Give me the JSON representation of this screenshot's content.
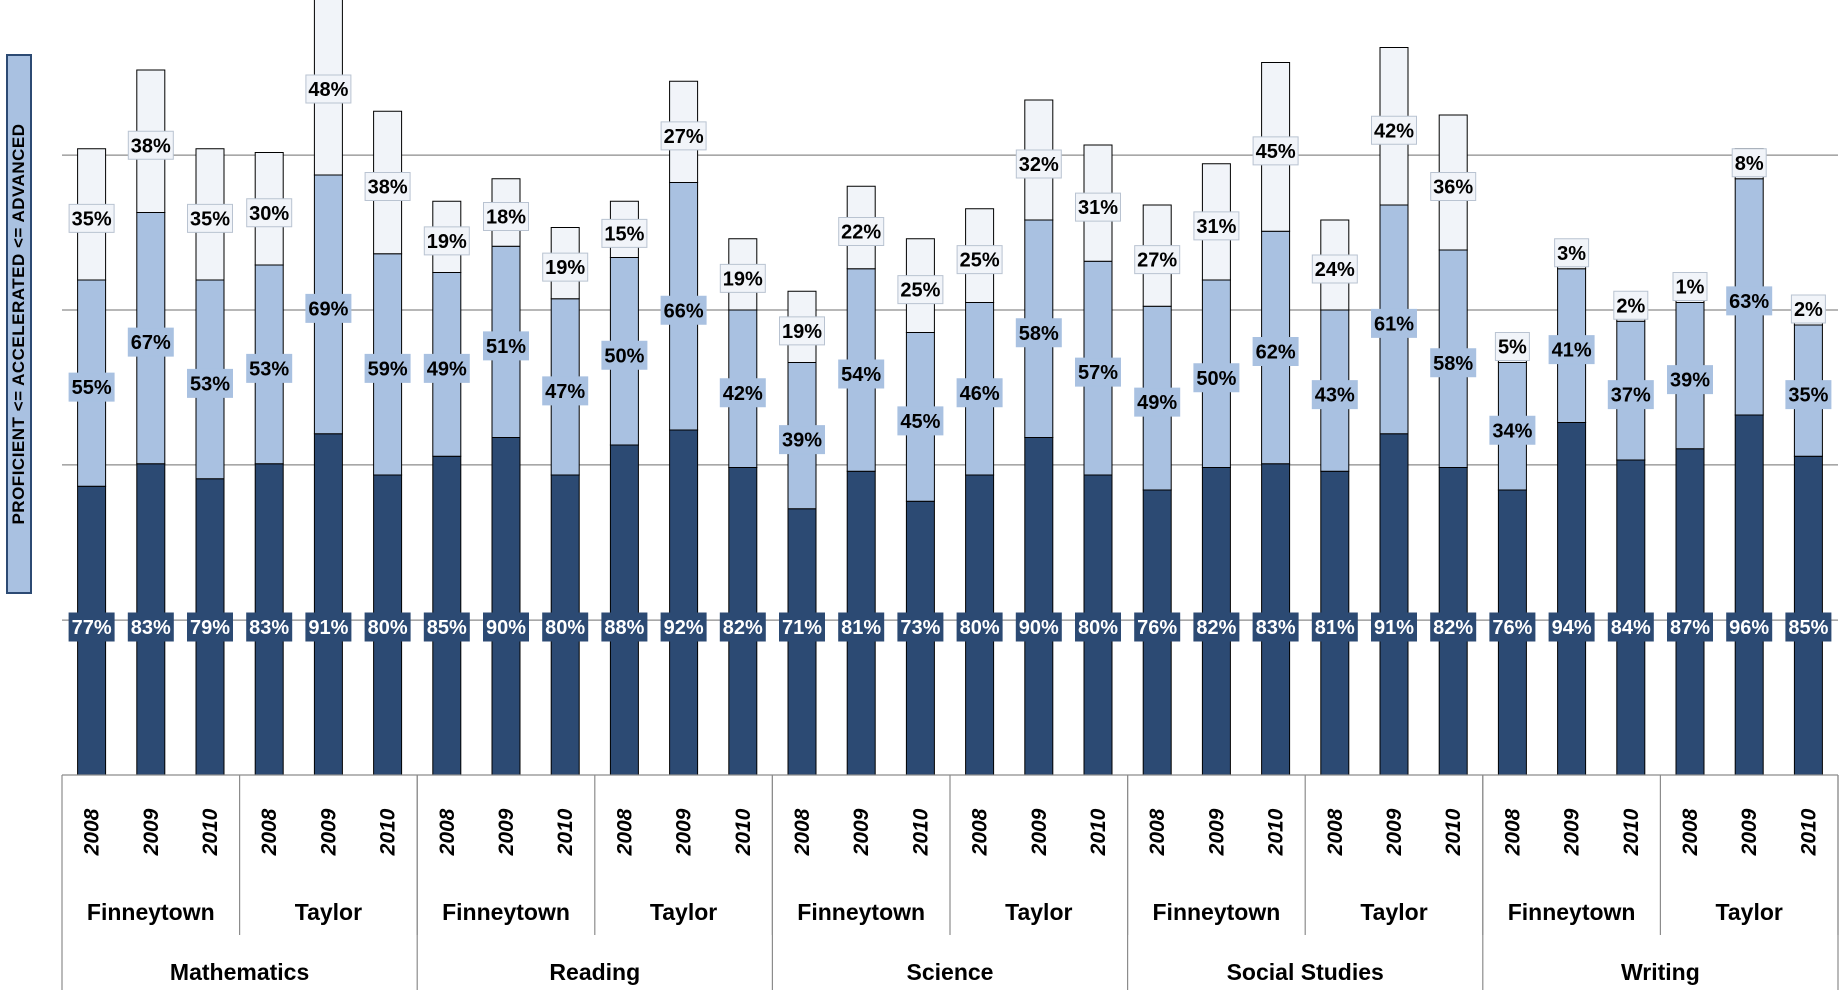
{
  "chart_data": {
    "type": "bar",
    "stacked": true,
    "ylabel": "PROFICIENT <= ACCELERATED <= ADVANCED",
    "ylim": [
      0,
      100
    ],
    "grid": true,
    "colors": {
      "proficient": "#2c4a73",
      "accelerated": "#a9c1e1",
      "advanced": "#f1f4f9",
      "outline": "#000000"
    },
    "years": [
      "2008",
      "2009",
      "2010"
    ],
    "groups": [
      {
        "subject": "Mathematics",
        "schools": [
          {
            "name": "Finneytown",
            "proficient": [
              77,
              83,
              79
            ],
            "accelerated": [
              55,
              67,
              53
            ],
            "advanced": [
              35,
              38,
              35
            ]
          },
          {
            "name": "Taylor",
            "proficient": [
              83,
              91,
              80
            ],
            "accelerated": [
              53,
              69,
              59
            ],
            "advanced": [
              30,
              48,
              38
            ]
          }
        ]
      },
      {
        "subject": "Reading",
        "schools": [
          {
            "name": "Finneytown",
            "proficient": [
              85,
              90,
              80
            ],
            "accelerated": [
              49,
              51,
              47
            ],
            "advanced": [
              19,
              18,
              19
            ]
          },
          {
            "name": "Taylor",
            "proficient": [
              88,
              92,
              82
            ],
            "accelerated": [
              50,
              66,
              42
            ],
            "advanced": [
              15,
              27,
              19
            ]
          }
        ]
      },
      {
        "subject": "Science",
        "schools": [
          {
            "name": "Finneytown",
            "proficient": [
              71,
              81,
              73
            ],
            "accelerated": [
              39,
              54,
              45
            ],
            "advanced": [
              19,
              22,
              25
            ]
          },
          {
            "name": "Taylor",
            "proficient": [
              80,
              90,
              80
            ],
            "accelerated": [
              46,
              58,
              57
            ],
            "advanced": [
              25,
              32,
              31
            ]
          }
        ]
      },
      {
        "subject": "Social Studies",
        "schools": [
          {
            "name": "Finneytown",
            "proficient": [
              76,
              82,
              83
            ],
            "accelerated": [
              49,
              50,
              62
            ],
            "advanced": [
              27,
              31,
              45
            ]
          },
          {
            "name": "Taylor",
            "proficient": [
              81,
              91,
              82
            ],
            "accelerated": [
              43,
              61,
              58
            ],
            "advanced": [
              24,
              42,
              36
            ]
          }
        ]
      },
      {
        "subject": "Writing",
        "schools": [
          {
            "name": "Finneytown",
            "proficient": [
              76,
              94,
              84
            ],
            "accelerated": [
              34,
              41,
              37
            ],
            "advanced": [
              5,
              3,
              2
            ]
          },
          {
            "name": "Taylor",
            "proficient": [
              87,
              96,
              85
            ],
            "accelerated": [
              39,
              63,
              35
            ],
            "advanced": [
              1,
              8,
              2
            ]
          }
        ]
      }
    ]
  }
}
